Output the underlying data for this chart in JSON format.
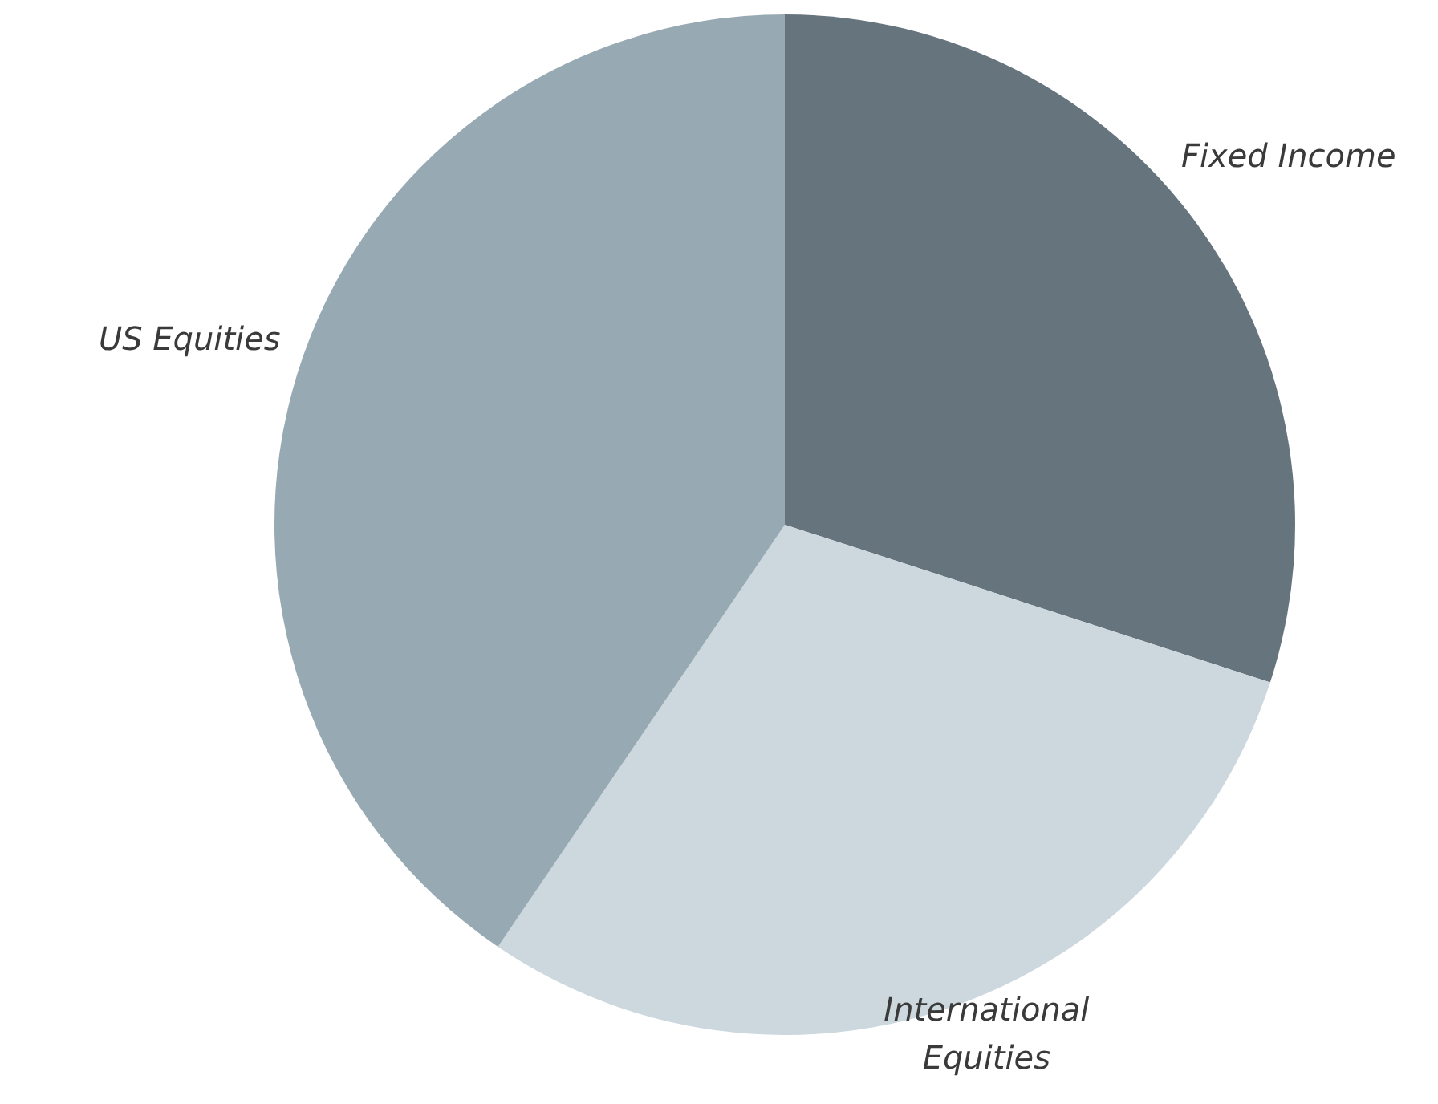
{
  "chart_data": {
    "type": "pie",
    "categories": [
      "Fixed Income",
      "International Equities",
      "US Equities"
    ],
    "values": [
      30,
      29.5,
      40.5
    ],
    "colors": [
      "#66747e",
      "#cdd8de",
      "#97a9b3"
    ],
    "legend": false
  }
}
